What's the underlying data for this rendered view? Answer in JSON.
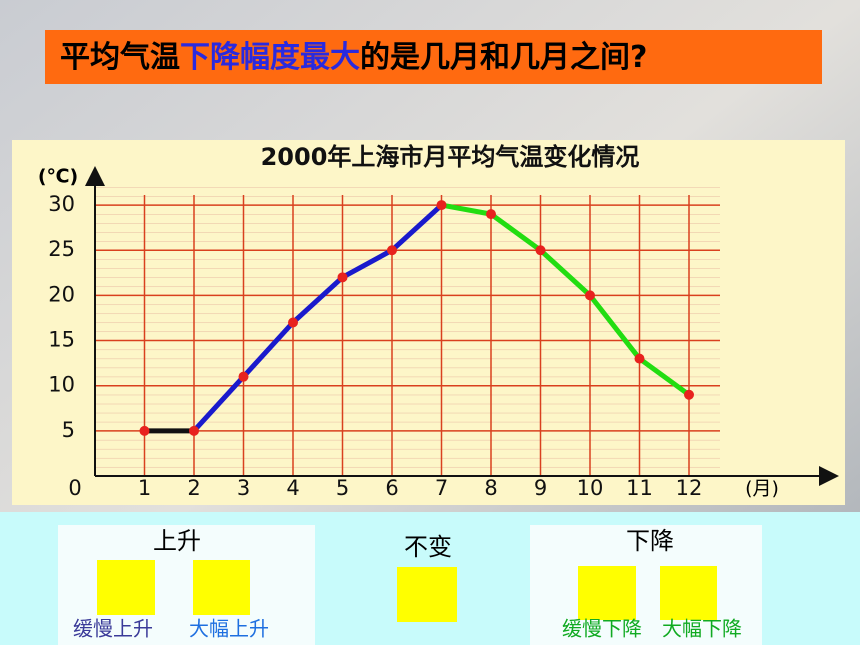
{
  "banner": {
    "parts": [
      "平均气温",
      "下降幅度最大",
      "的是几月和几月之间",
      "?"
    ]
  },
  "chart_data": {
    "type": "line",
    "title": "2000年上海市月平均气温变化情况",
    "y_label": "(℃)",
    "x_label": "(月)",
    "categories": [
      "1",
      "2",
      "3",
      "4",
      "5",
      "6",
      "7",
      "8",
      "9",
      "10",
      "11",
      "12"
    ],
    "values": [
      5,
      5,
      11,
      17,
      22,
      25,
      30,
      29,
      25,
      20,
      13,
      9
    ],
    "marker_color": "#e8221e",
    "series": [
      {
        "color": "#111111",
        "values": [
          5,
          5,
          null,
          null,
          null,
          null,
          null,
          null,
          null,
          null,
          null,
          null
        ]
      },
      {
        "color": "#1a1acc",
        "values": [
          null,
          5,
          11,
          17,
          22,
          25,
          30,
          null,
          null,
          null,
          null,
          null
        ]
      },
      {
        "color": "#22dd11",
        "values": [
          null,
          null,
          null,
          null,
          null,
          null,
          30,
          29,
          25,
          20,
          13,
          9
        ]
      }
    ],
    "ylim": [
      0,
      33
    ],
    "yticks": [
      0,
      5,
      10,
      15,
      20,
      25,
      30
    ],
    "grid": true,
    "grid_color": "#d9401e"
  },
  "legend_panel": {
    "rise": {
      "title": "上升",
      "options": [
        "缓慢上升",
        "大幅上升"
      ]
    },
    "same": {
      "title": "不变"
    },
    "fall": {
      "title": "下降",
      "options": [
        "缓慢下降",
        "大幅下降"
      ]
    }
  }
}
